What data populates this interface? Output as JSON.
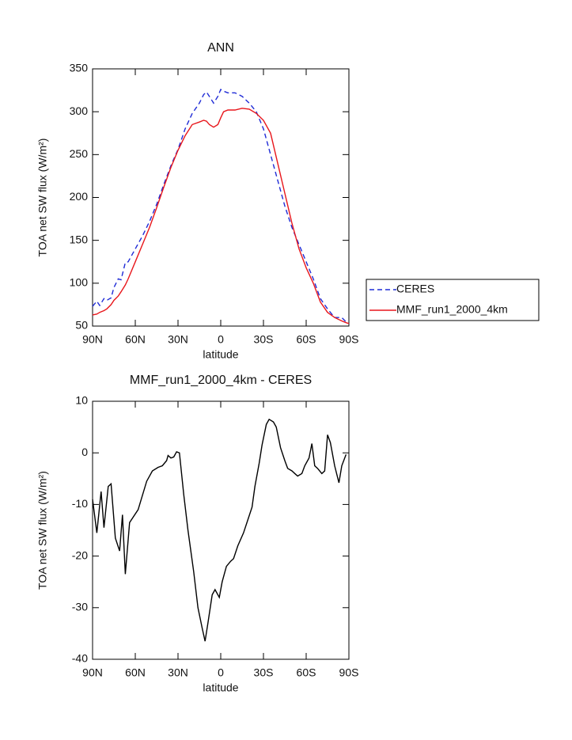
{
  "chart_data": [
    {
      "type": "line",
      "title": "ANN",
      "xlabel": "latitude",
      "ylabel": "TOA net SW flux (W/m²)",
      "x": [
        90,
        87,
        85,
        82,
        80,
        77,
        75,
        72,
        70,
        67,
        65,
        60,
        55,
        50,
        45,
        40,
        35,
        30,
        25,
        20,
        15,
        12,
        10,
        8,
        5,
        2,
        0,
        -2,
        -5,
        -10,
        -15,
        -20,
        -25,
        -30,
        -35,
        -40,
        -45,
        -50,
        -55,
        -60,
        -65,
        -70,
        -75,
        -80,
        -85,
        -88,
        -90
      ],
      "series": [
        {
          "name": "CERES",
          "color": "#1f2bd6",
          "linestyle": "dashed",
          "values": [
            73,
            79,
            74,
            82,
            80,
            83,
            95,
            105,
            104,
            124,
            125,
            140,
            155,
            172,
            192,
            215,
            237,
            256,
            280,
            298,
            310,
            320,
            323,
            318,
            310,
            318,
            326,
            324,
            322,
            322,
            318,
            310,
            300,
            280,
            250,
            220,
            190,
            165,
            145,
            125,
            105,
            82,
            70,
            60,
            60,
            55,
            53
          ]
        },
        {
          "name": "MMF_run1_2000_4km",
          "color": "#e8161b",
          "linestyle": "solid",
          "values": [
            63,
            64,
            66,
            68,
            70,
            75,
            80,
            85,
            90,
            98,
            105,
            125,
            145,
            165,
            188,
            212,
            235,
            255,
            272,
            285,
            288,
            290,
            289,
            285,
            282,
            285,
            293,
            300,
            302,
            302,
            304,
            303,
            298,
            290,
            275,
            240,
            205,
            170,
            140,
            118,
            100,
            78,
            66,
            60,
            56,
            54,
            53
          ]
        }
      ],
      "xlim": [
        90,
        -90
      ],
      "xticks": [
        {
          "value": 90,
          "label": "90N"
        },
        {
          "value": 60,
          "label": "60N"
        },
        {
          "value": 30,
          "label": "30N"
        },
        0,
        {
          "value": -30,
          "label": "30S"
        },
        {
          "value": -60,
          "label": "60S"
        },
        {
          "value": -90,
          "label": "90S"
        }
      ],
      "ylim": [
        50,
        350
      ],
      "yticks": [
        50,
        100,
        150,
        200,
        250,
        300,
        350
      ],
      "legend": "outside right"
    },
    {
      "type": "line",
      "title": "MMF_run1_2000_4km - CERES",
      "xlabel": "latitude",
      "ylabel": "TOA net SW flux (W/m²)",
      "x": [
        90,
        87,
        84,
        82,
        79,
        77,
        74,
        71,
        69,
        67,
        64,
        58,
        52,
        48,
        44,
        41,
        38,
        37,
        35,
        33,
        31,
        29,
        26,
        23,
        19,
        16,
        13,
        11,
        9,
        6,
        4,
        1,
        -1,
        -4,
        -7,
        -9,
        -12,
        -16,
        -19,
        -22,
        -24,
        -27,
        -29,
        -32,
        -34,
        -37,
        -39,
        -42,
        -45,
        -47,
        -50,
        -52,
        -54,
        -57,
        -59,
        -62,
        -64,
        -66,
        -68,
        -71,
        -73,
        -75,
        -77,
        -80,
        -83,
        -85,
        -88
      ],
      "values": [
        -9,
        -15.5,
        -7.5,
        -14.5,
        -6.5,
        -6,
        -16.5,
        -19,
        -12,
        -23.5,
        -13.5,
        -11,
        -5.5,
        -3.5,
        -2.8,
        -2.5,
        -1.5,
        -0.5,
        -1,
        -0.8,
        0.2,
        0,
        -8,
        -15,
        -23,
        -30,
        -34,
        -36.5,
        -33,
        -27.5,
        -26.5,
        -28,
        -25,
        -22,
        -21,
        -20.5,
        -18,
        -15.5,
        -13,
        -10.5,
        -6.5,
        -2,
        1.5,
        5.5,
        6.5,
        6,
        5,
        1,
        -1.5,
        -3,
        -3.5,
        -4,
        -4.5,
        -4,
        -2.5,
        -1,
        1.8,
        -2.5,
        -3,
        -4,
        -3.5,
        3.5,
        2,
        -2.5,
        -5.8,
        -2.5,
        -0.3
      ],
      "color": "#000000",
      "xlim": [
        90,
        -90
      ],
      "xticks": [
        {
          "value": 90,
          "label": "90N"
        },
        {
          "value": 60,
          "label": "60N"
        },
        {
          "value": 30,
          "label": "30N"
        },
        0,
        {
          "value": -30,
          "label": "30S"
        },
        {
          "value": -60,
          "label": "60S"
        },
        {
          "value": -90,
          "label": "90S"
        }
      ],
      "ylim": [
        -40,
        10
      ],
      "yticks": [
        -40,
        -30,
        -20,
        -10,
        0,
        10
      ]
    }
  ]
}
